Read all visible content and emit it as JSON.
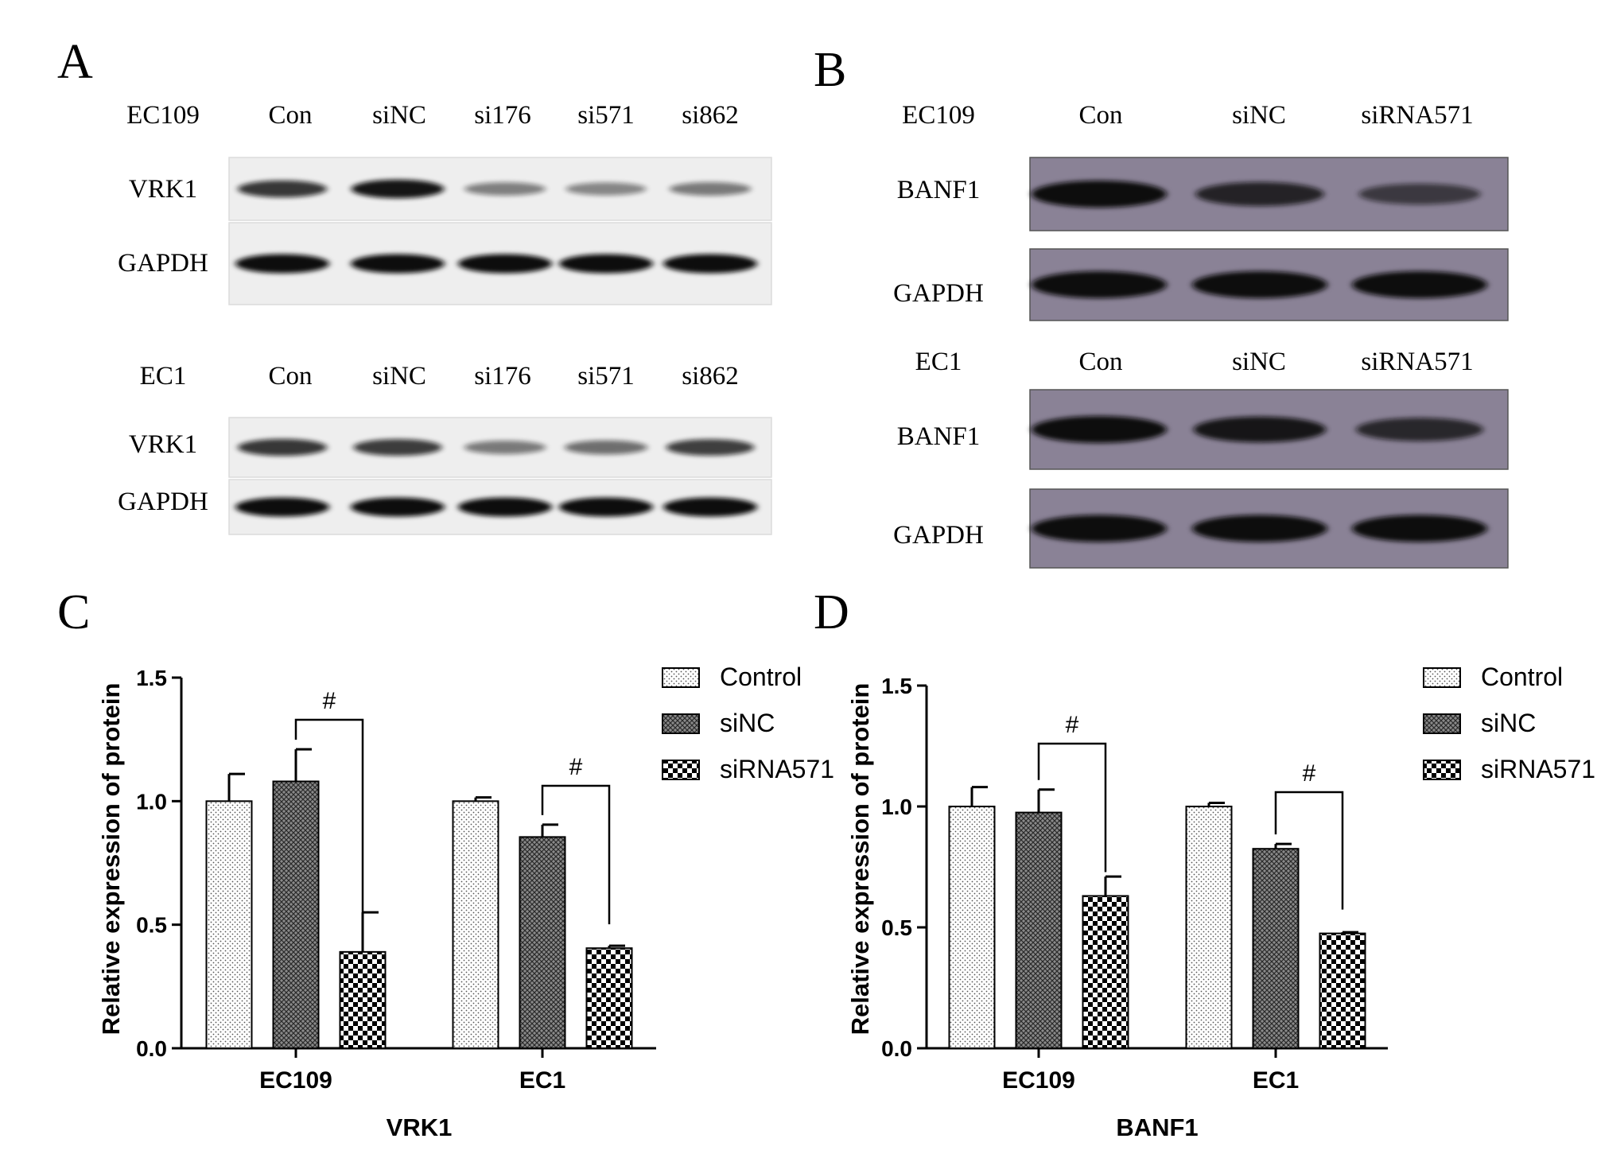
{
  "panels": {
    "A": {
      "letter": "A",
      "blots": [
        {
          "cell_line": "EC109",
          "lanes": [
            "Con",
            "siNC",
            "si176",
            "si571",
            "si862"
          ],
          "rows": [
            {
              "label": "VRK1",
              "intensities": [
                0.75,
                0.95,
                0.32,
                0.28,
                0.35
              ]
            },
            {
              "label": "GAPDH",
              "intensities": [
                1.0,
                1.0,
                1.0,
                1.0,
                1.0
              ]
            }
          ]
        },
        {
          "cell_line": "EC1",
          "lanes": [
            "Con",
            "siNC",
            "si176",
            "si571",
            "si862"
          ],
          "rows": [
            {
              "label": "VRK1",
              "intensities": [
                0.75,
                0.72,
                0.35,
                0.42,
                0.7
              ]
            },
            {
              "label": "GAPDH",
              "intensities": [
                1.0,
                1.0,
                1.0,
                1.0,
                1.0
              ]
            }
          ]
        }
      ]
    },
    "B": {
      "letter": "B",
      "blots": [
        {
          "cell_line": "EC109",
          "lanes": [
            "Con",
            "siNC",
            "siRNA571"
          ],
          "rows": [
            {
              "label": "BANF1",
              "intensities": [
                1.0,
                0.75,
                0.5
              ]
            },
            {
              "label": "GAPDH",
              "intensities": [
                1.0,
                1.0,
                1.0
              ]
            }
          ]
        },
        {
          "cell_line": "EC1",
          "lanes": [
            "Con",
            "siNC",
            "siRNA571"
          ],
          "rows": [
            {
              "label": "BANF1",
              "intensities": [
                1.0,
                0.9,
                0.7
              ]
            },
            {
              "label": "GAPDH",
              "intensities": [
                1.0,
                1.0,
                1.0
              ]
            }
          ]
        }
      ]
    },
    "C": {
      "letter": "C"
    },
    "D": {
      "letter": "D"
    }
  },
  "colors": {
    "band": "#111111",
    "blot_a_bg": "#eeeeee",
    "blot_b_bg": "#8a8296",
    "bar_stroke": "#000000"
  },
  "chart_data": [
    {
      "type": "bar",
      "panel": "C",
      "categories": [
        "EC109",
        "EC1"
      ],
      "series": [
        {
          "name": "Control",
          "pattern": "dots",
          "values": [
            1.0,
            1.0
          ],
          "errors": [
            0.11,
            0.015
          ]
        },
        {
          "name": "siNC",
          "pattern": "mesh",
          "values": [
            1.08,
            0.855
          ],
          "errors": [
            0.13,
            0.05
          ]
        },
        {
          "name": "siRNA571",
          "pattern": "checker",
          "values": [
            0.39,
            0.405
          ],
          "errors": [
            0.16,
            0.01
          ]
        }
      ],
      "annotations": [
        "#",
        "#"
      ],
      "xlabel": "VRK1",
      "ylabel": "Relative expression of protein",
      "ylim": [
        0,
        1.5
      ],
      "yticks": [
        "0.0",
        "0.5",
        "1.0",
        "1.5"
      ],
      "legend": "top-right"
    },
    {
      "type": "bar",
      "panel": "D",
      "categories": [
        "EC109",
        "EC1"
      ],
      "series": [
        {
          "name": "Control",
          "pattern": "dots",
          "values": [
            1.0,
            1.0
          ],
          "errors": [
            0.08,
            0.015
          ]
        },
        {
          "name": "siNC",
          "pattern": "mesh",
          "values": [
            0.975,
            0.825
          ],
          "errors": [
            0.095,
            0.02
          ]
        },
        {
          "name": "siRNA571",
          "pattern": "checker",
          "values": [
            0.63,
            0.475
          ],
          "errors": [
            0.08,
            0.005
          ]
        }
      ],
      "annotations": [
        "#",
        "#"
      ],
      "xlabel": "BANF1",
      "ylabel": "Relative expression of protein",
      "ylim": [
        0,
        1.5
      ],
      "yticks": [
        "0.0",
        "0.5",
        "1.0",
        "1.5"
      ],
      "legend": "top-right"
    }
  ]
}
